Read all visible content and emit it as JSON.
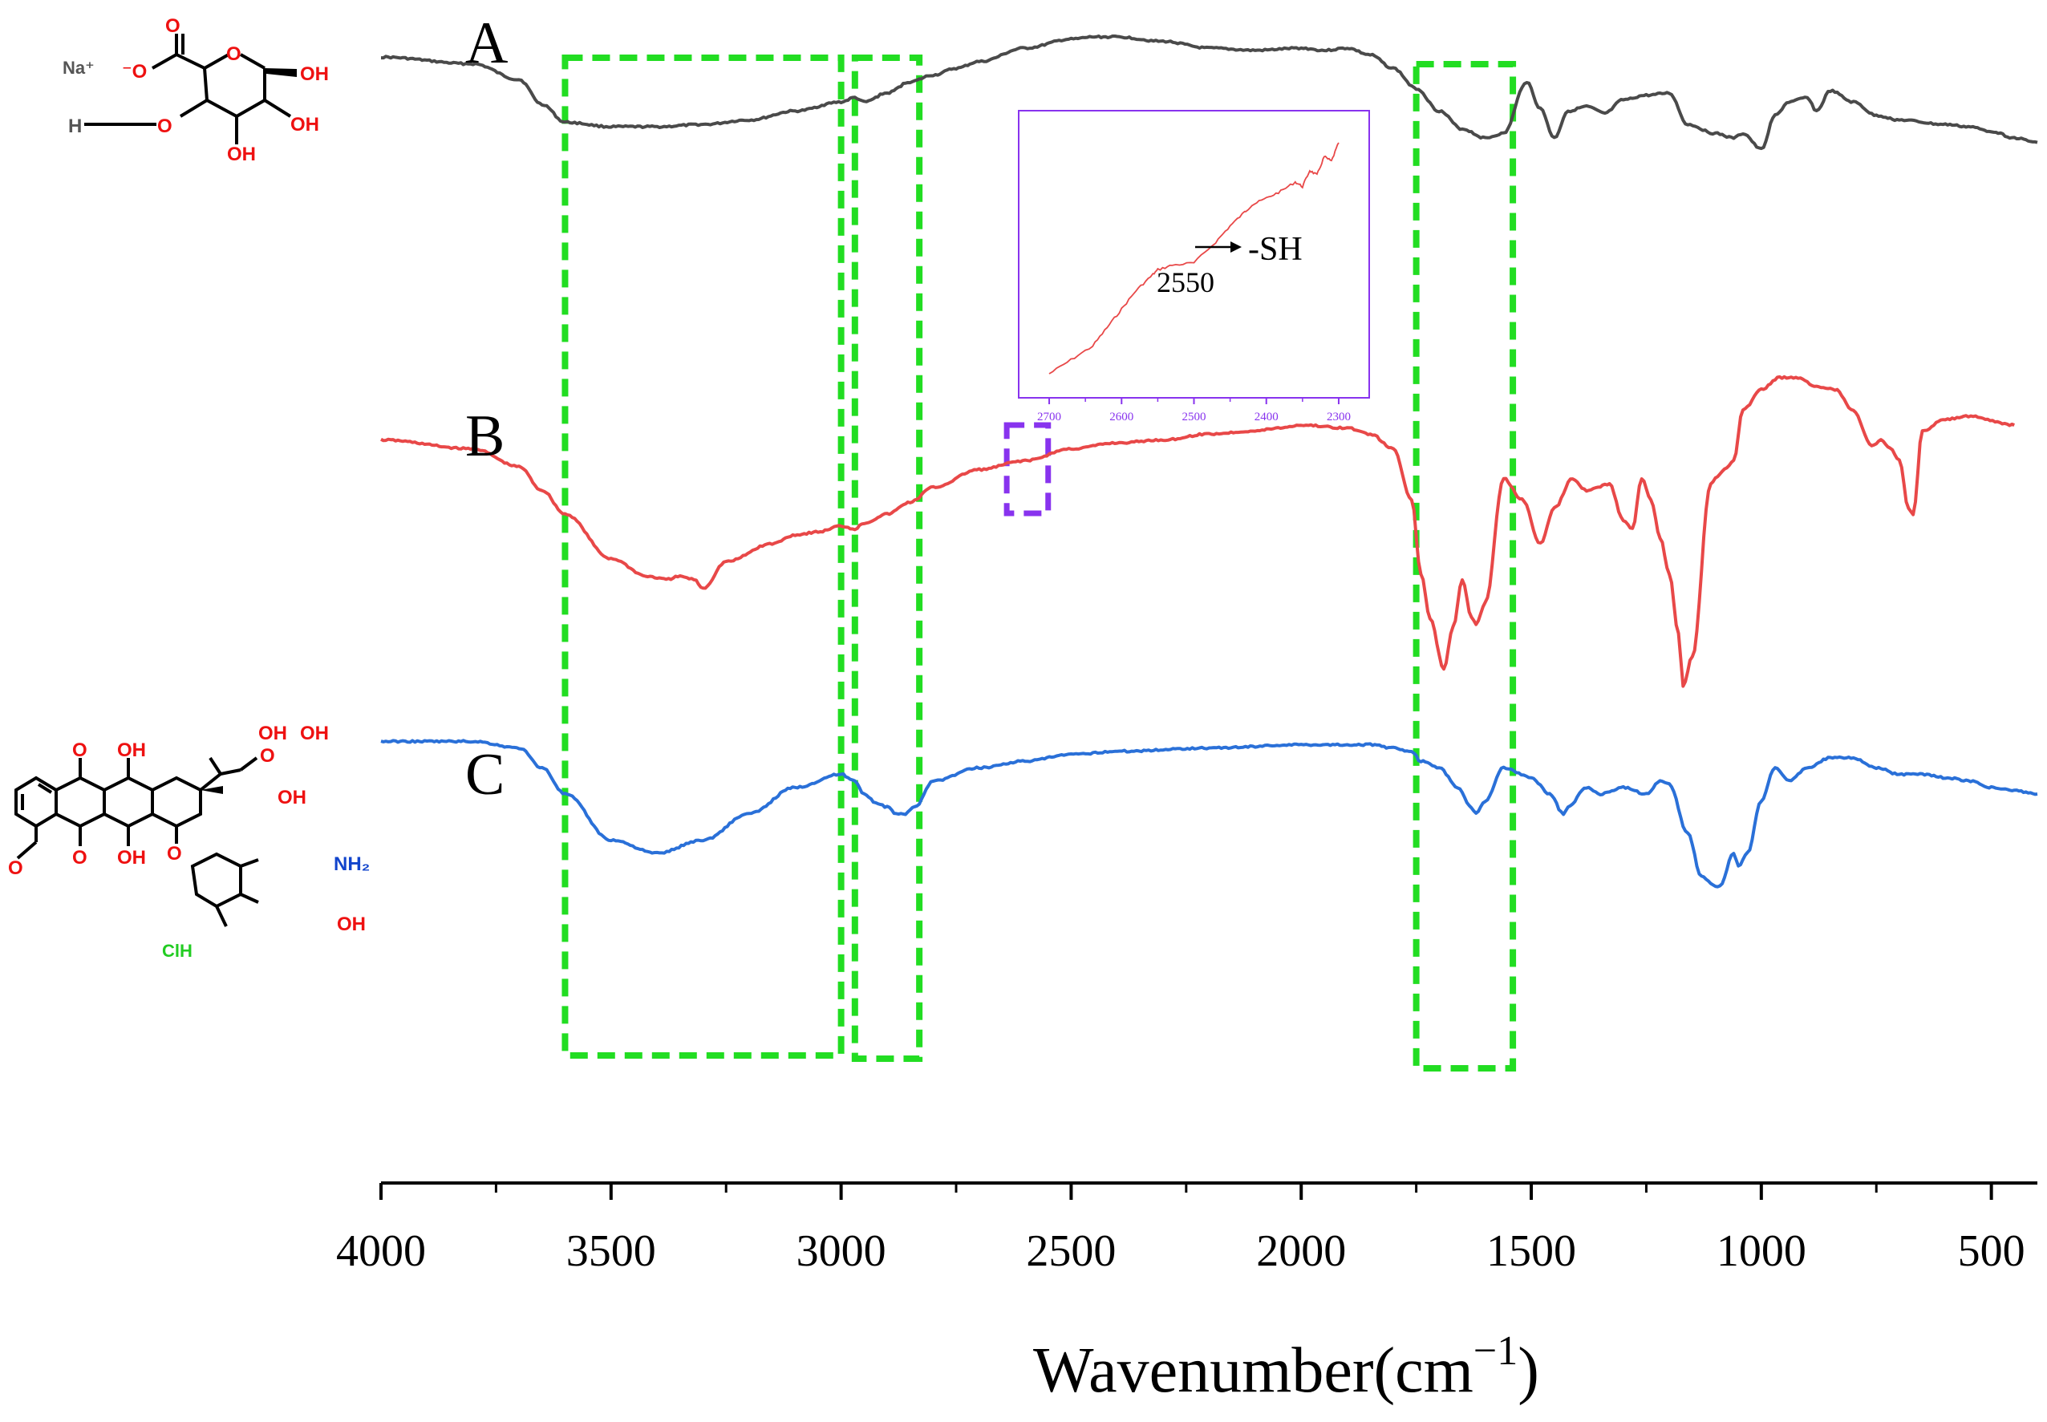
{
  "chart_data": {
    "type": "line",
    "title": "",
    "xlabel": "Wavenumber(cm",
    "xlabel_sup": "−1",
    "xlabel_close": ")",
    "ylabel": "",
    "x_reversed": true,
    "xlim": [
      4000,
      400
    ],
    "x_ticks": [
      4000,
      3500,
      3000,
      2500,
      2000,
      1500,
      1000,
      500
    ],
    "x_tick_labels": [
      "4000",
      "3500",
      "3000",
      "2500",
      "2000",
      "1500",
      "1000",
      "500"
    ],
    "y_units": "transmittance (arb., stacked)",
    "series": [
      {
        "name": "A",
        "label": "A",
        "color": "#4a4a4a",
        "x": [
          4000,
          3800,
          3700,
          3650,
          3600,
          3500,
          3400,
          3300,
          3200,
          3100,
          3000,
          2970,
          2950,
          2900,
          2850,
          2800,
          2750,
          2700,
          2600,
          2500,
          2450,
          2400,
          2300,
          2200,
          2100,
          2000,
          1950,
          1900,
          1850,
          1800,
          1750,
          1700,
          1650,
          1600,
          1560,
          1510,
          1480,
          1450,
          1420,
          1380,
          1340,
          1300,
          1250,
          1200,
          1160,
          1100,
          1060,
          1040,
          1000,
          970,
          940,
          900,
          880,
          850,
          800,
          750,
          700,
          600,
          550,
          500,
          450,
          400
        ],
        "y": [
          0.96,
          0.93,
          0.86,
          0.75,
          0.67,
          0.65,
          0.65,
          0.66,
          0.68,
          0.72,
          0.76,
          0.78,
          0.76,
          0.8,
          0.85,
          0.88,
          0.91,
          0.94,
          1.0,
          1.04,
          1.05,
          1.05,
          1.03,
          1.0,
          0.99,
          1.0,
          0.99,
          1.0,
          0.97,
          0.91,
          0.82,
          0.72,
          0.64,
          0.6,
          0.62,
          0.85,
          0.73,
          0.6,
          0.72,
          0.74,
          0.71,
          0.77,
          0.79,
          0.8,
          0.66,
          0.62,
          0.6,
          0.62,
          0.55,
          0.7,
          0.76,
          0.78,
          0.72,
          0.81,
          0.76,
          0.7,
          0.68,
          0.66,
          0.65,
          0.63,
          0.6,
          0.58
        ]
      },
      {
        "name": "B",
        "label": "B",
        "color": "#e84848",
        "x": [
          4000,
          3800,
          3700,
          3650,
          3600,
          3500,
          3420,
          3380,
          3350,
          3320,
          3300,
          3250,
          3150,
          3100,
          3050,
          3000,
          2970,
          2950,
          2900,
          2850,
          2800,
          2700,
          2600,
          2500,
          2400,
          2300,
          2200,
          2100,
          2050,
          2000,
          1900,
          1850,
          1800,
          1760,
          1740,
          1720,
          1690,
          1670,
          1650,
          1630,
          1620,
          1600,
          1560,
          1520,
          1480,
          1450,
          1410,
          1380,
          1330,
          1300,
          1280,
          1260,
          1240,
          1220,
          1200,
          1180,
          1170,
          1150,
          1110,
          1100,
          1080,
          1060,
          1040,
          1000,
          960,
          920,
          880,
          840,
          800,
          760,
          740,
          720,
          700,
          680,
          670,
          650,
          600,
          550,
          450
        ],
        "y": [
          0.95,
          0.92,
          0.86,
          0.78,
          0.7,
          0.55,
          0.49,
          0.48,
          0.49,
          0.48,
          0.45,
          0.54,
          0.6,
          0.63,
          0.64,
          0.66,
          0.65,
          0.67,
          0.7,
          0.74,
          0.79,
          0.85,
          0.88,
          0.92,
          0.94,
          0.95,
          0.97,
          0.98,
          0.99,
          1.0,
          0.99,
          0.97,
          0.92,
          0.75,
          0.5,
          0.35,
          0.18,
          0.32,
          0.48,
          0.35,
          0.33,
          0.4,
          0.82,
          0.75,
          0.6,
          0.72,
          0.82,
          0.78,
          0.8,
          0.68,
          0.65,
          0.82,
          0.75,
          0.62,
          0.5,
          0.3,
          0.12,
          0.22,
          0.8,
          0.82,
          0.85,
          0.88,
          1.05,
          1.12,
          1.16,
          1.16,
          1.13,
          1.12,
          1.05,
          0.93,
          0.95,
          0.92,
          0.88,
          0.72,
          0.7,
          0.98,
          1.02,
          1.03,
          1.0
        ]
      },
      {
        "name": "C",
        "label": "C",
        "color": "#2a70d8",
        "x": [
          4000,
          3800,
          3700,
          3650,
          3600,
          3500,
          3400,
          3300,
          3200,
          3100,
          3000,
          2970,
          2950,
          2920,
          2900,
          2880,
          2860,
          2840,
          2800,
          2700,
          2600,
          2500,
          2400,
          2200,
          2000,
          1900,
          1850,
          1800,
          1760,
          1740,
          1700,
          1660,
          1630,
          1620,
          1600,
          1560,
          1500,
          1460,
          1430,
          1420,
          1380,
          1350,
          1300,
          1250,
          1220,
          1200,
          1160,
          1130,
          1100,
          1090,
          1060,
          1050,
          1030,
          1000,
          970,
          940,
          900,
          850,
          800,
          750,
          700,
          650,
          600,
          550,
          500,
          450,
          400
        ],
        "y": [
          0.96,
          0.96,
          0.94,
          0.88,
          0.8,
          0.66,
          0.62,
          0.66,
          0.74,
          0.82,
          0.86,
          0.84,
          0.8,
          0.77,
          0.76,
          0.74,
          0.74,
          0.76,
          0.84,
          0.88,
          0.9,
          0.92,
          0.93,
          0.94,
          0.95,
          0.95,
          0.95,
          0.94,
          0.93,
          0.9,
          0.88,
          0.82,
          0.76,
          0.74,
          0.78,
          0.88,
          0.85,
          0.8,
          0.74,
          0.76,
          0.82,
          0.8,
          0.82,
          0.8,
          0.84,
          0.83,
          0.68,
          0.55,
          0.52,
          0.52,
          0.62,
          0.58,
          0.62,
          0.78,
          0.88,
          0.84,
          0.88,
          0.91,
          0.91,
          0.88,
          0.86,
          0.86,
          0.85,
          0.84,
          0.82,
          0.81,
          0.8
        ]
      }
    ],
    "regions": [
      {
        "name": "region-oh-stretch",
        "x_from": 3600,
        "x_to": 3000,
        "color": "#22dd22",
        "style": "dashed"
      },
      {
        "name": "region-ch-stretch",
        "x_from": 2970,
        "x_to": 2830,
        "color": "#22dd22",
        "style": "dashed"
      },
      {
        "name": "region-carbonyl",
        "x_from": 1750,
        "x_to": 1540,
        "color": "#22dd22",
        "style": "dashed"
      },
      {
        "name": "region-thiol",
        "x_from": 2640,
        "x_to": 2550,
        "color": "#8833ee",
        "style": "dashed"
      }
    ],
    "inset": {
      "series_name": "B",
      "color": "#e84848",
      "frame_color": "#8833ee",
      "xlim": [
        2720,
        2280
      ],
      "x_ticks": [
        2700,
        2600,
        2500,
        2400,
        2300
      ],
      "x_tick_labels": [
        "2700",
        "2600",
        "2500",
        "2400",
        "2300"
      ],
      "x": [
        2700,
        2670,
        2640,
        2620,
        2600,
        2580,
        2560,
        2550,
        2530,
        2500,
        2470,
        2450,
        2430,
        2420,
        2400,
        2380,
        2360,
        2350,
        2340,
        2330,
        2320,
        2310,
        2300
      ],
      "y": [
        0.0,
        0.06,
        0.12,
        0.2,
        0.28,
        0.36,
        0.42,
        0.45,
        0.47,
        0.48,
        0.57,
        0.64,
        0.7,
        0.73,
        0.76,
        0.79,
        0.83,
        0.81,
        0.88,
        0.86,
        0.94,
        0.92,
        1.0
      ],
      "annotation": {
        "text": "-SH",
        "value_label": "2550",
        "x": 2550
      }
    }
  },
  "molecules": {
    "top": {
      "labels": [
        "Na⁺",
        "⁻O",
        "O",
        "O",
        "H",
        "O",
        "OH",
        "OH",
        "OH"
      ],
      "colors": {
        "carbon_bond": "#000000",
        "hetero": "#ee1111",
        "salt": "#555555"
      }
    },
    "bottom": {
      "labels": [
        "O",
        "O",
        "OH",
        "OH",
        "OH",
        "OH",
        "O",
        "OH",
        "O",
        "O",
        "NH₂",
        "OH",
        "ClH"
      ],
      "colors": {
        "carbon_bond": "#000000",
        "hetero": "#ee1111",
        "amine": "#1144cc",
        "salt": "#22cc22"
      }
    }
  }
}
